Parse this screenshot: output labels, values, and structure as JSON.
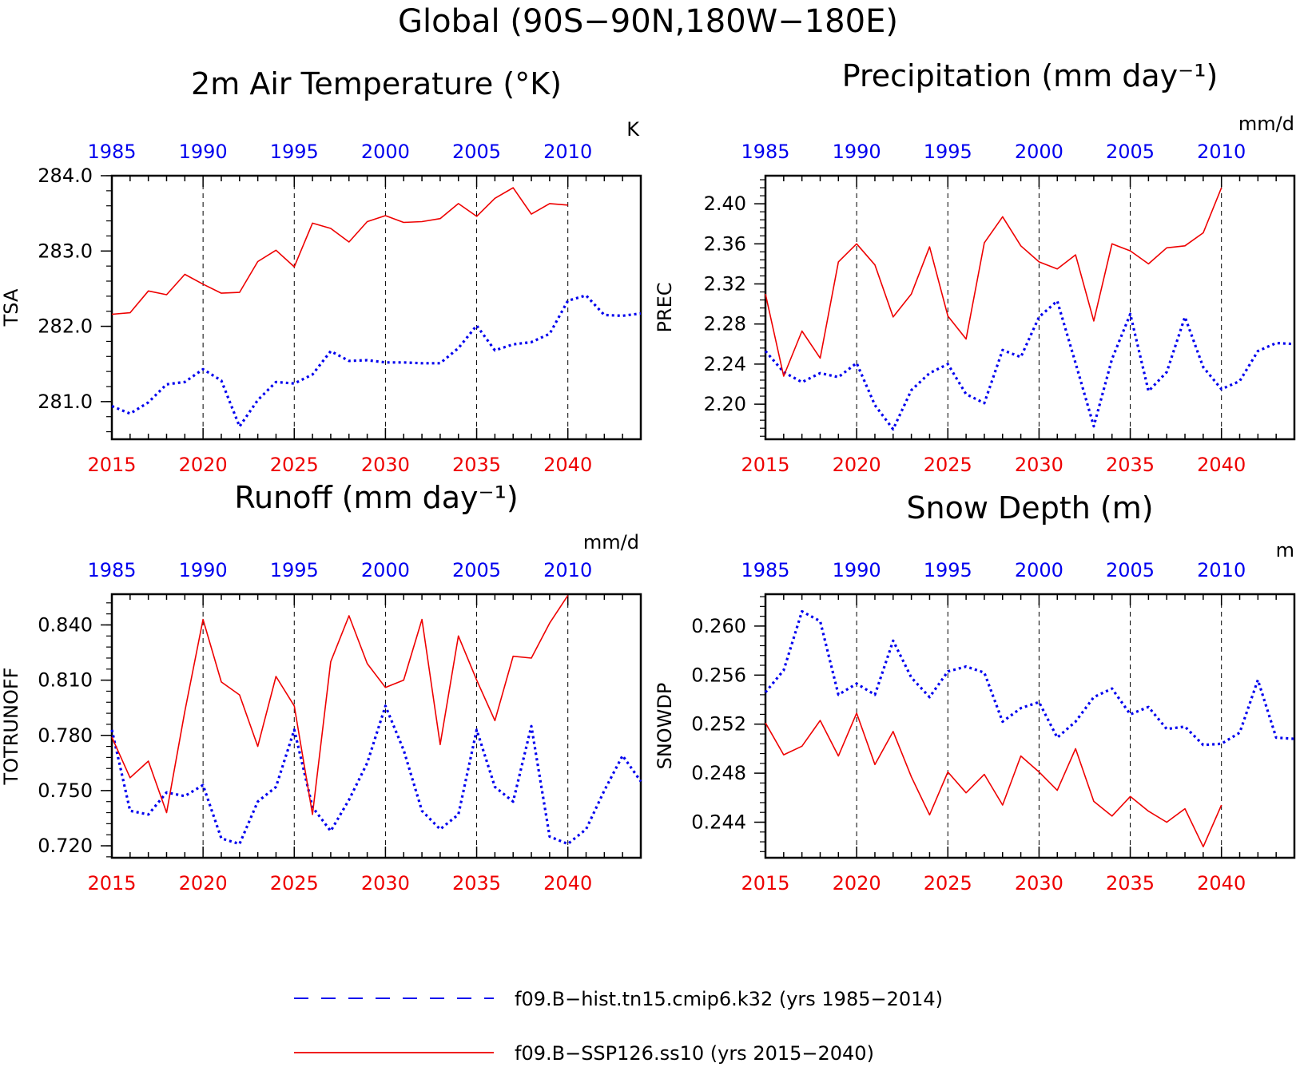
{
  "title": "Global (90S−90N,180W−180E)",
  "colors": {
    "hist": "#0000ee",
    "ssp": "#ee0000",
    "axis": "#000000"
  },
  "top_axis_labels": [
    "1985",
    "1990",
    "1995",
    "2000",
    "2005",
    "2010"
  ],
  "bottom_axis_labels": [
    "2015",
    "2020",
    "2025",
    "2030",
    "2035",
    "2040"
  ],
  "legend": [
    {
      "label": "f09.B−hist.tn15.cmip6.k32 (yrs 1985−2014)",
      "series": "hist"
    },
    {
      "label": "f09.B−SSP126.ss10 (yrs 2015−2040)",
      "series": "ssp"
    }
  ],
  "chart_data": [
    {
      "type": "line",
      "title": "2m Air Temperature (°K)",
      "units": "K",
      "ylabel": "TSA",
      "xlim": [
        2015,
        2044
      ],
      "ylim": [
        280.5,
        284.0
      ],
      "yticks": [
        "281.0",
        "282.0",
        "283.0",
        "284.0"
      ],
      "x_top": [
        "1985",
        "1990",
        "1995",
        "2000",
        "2005",
        "2010"
      ],
      "x_bottom": [
        "2015",
        "2020",
        "2025",
        "2030",
        "2035",
        "2040"
      ],
      "series": [
        {
          "key": "hist",
          "x0": 2015,
          "values": [
            280.94,
            280.84,
            280.99,
            281.23,
            281.26,
            281.43,
            281.28,
            280.67,
            281.02,
            281.26,
            281.24,
            281.36,
            281.67,
            281.54,
            281.55,
            281.52,
            281.52,
            281.51,
            281.51,
            281.71,
            282.01,
            281.68,
            281.76,
            281.79,
            281.9,
            282.34,
            282.41,
            282.15,
            282.14,
            282.17
          ]
        },
        {
          "key": "ssp",
          "x0": 2015,
          "values": [
            282.16,
            282.18,
            282.47,
            282.42,
            282.69,
            282.56,
            282.44,
            282.45,
            282.86,
            283.01,
            282.79,
            283.37,
            283.3,
            283.12,
            283.39,
            283.47,
            283.38,
            283.39,
            283.43,
            283.63,
            283.46,
            283.7,
            283.84,
            283.49,
            283.63,
            283.61
          ]
        }
      ]
    },
    {
      "type": "line",
      "title": "Precipitation (mm day⁻¹)",
      "units": "mm/d",
      "ylabel": "PREC",
      "xlim": [
        2015,
        2044
      ],
      "ylim": [
        2.165,
        2.428
      ],
      "yticks": [
        "2.20",
        "2.24",
        "2.28",
        "2.32",
        "2.36",
        "2.40"
      ],
      "x_top": [
        "1985",
        "1990",
        "1995",
        "2000",
        "2005",
        "2010"
      ],
      "x_bottom": [
        "2015",
        "2020",
        "2025",
        "2030",
        "2035",
        "2040"
      ],
      "series": [
        {
          "key": "hist",
          "x0": 2015,
          "values": [
            2.253,
            2.232,
            2.222,
            2.231,
            2.227,
            2.241,
            2.199,
            2.175,
            2.214,
            2.231,
            2.24,
            2.21,
            2.201,
            2.254,
            2.247,
            2.287,
            2.303,
            2.241,
            2.178,
            2.245,
            2.29,
            2.213,
            2.232,
            2.287,
            2.237,
            2.215,
            2.223,
            2.253,
            2.261,
            2.26
          ]
        },
        {
          "key": "ssp",
          "x0": 2015,
          "values": [
            2.31,
            2.228,
            2.273,
            2.246,
            2.342,
            2.36,
            2.339,
            2.287,
            2.31,
            2.357,
            2.288,
            2.265,
            2.361,
            2.387,
            2.358,
            2.342,
            2.335,
            2.349,
            2.283,
            2.36,
            2.353,
            2.34,
            2.356,
            2.358,
            2.371,
            2.416
          ]
        }
      ]
    },
    {
      "type": "line",
      "title": "Runoff (mm day⁻¹)",
      "units": "mm/d",
      "ylabel": "TOTRUNOFF",
      "xlim": [
        2015,
        2044
      ],
      "ylim": [
        0.7135,
        0.8567
      ],
      "yticks": [
        "0.720",
        "0.750",
        "0.780",
        "0.810",
        "0.840"
      ],
      "x_top": [
        "1985",
        "1990",
        "1995",
        "2000",
        "2005",
        "2010"
      ],
      "x_bottom": [
        "2015",
        "2020",
        "2025",
        "2030",
        "2035",
        "2040"
      ],
      "series": [
        {
          "key": "hist",
          "x0": 2015,
          "values": [
            0.783,
            0.739,
            0.737,
            0.749,
            0.747,
            0.753,
            0.724,
            0.721,
            0.744,
            0.752,
            0.783,
            0.741,
            0.728,
            0.745,
            0.765,
            0.796,
            0.772,
            0.739,
            0.729,
            0.737,
            0.783,
            0.752,
            0.744,
            0.785,
            0.725,
            0.721,
            0.729,
            0.75,
            0.769,
            0.755
          ]
        },
        {
          "key": "ssp",
          "x0": 2015,
          "values": [
            0.779,
            0.757,
            0.766,
            0.738,
            0.793,
            0.843,
            0.809,
            0.802,
            0.774,
            0.812,
            0.796,
            0.737,
            0.82,
            0.845,
            0.819,
            0.806,
            0.81,
            0.843,
            0.775,
            0.834,
            0.81,
            0.788,
            0.823,
            0.822,
            0.841,
            0.856
          ]
        }
      ]
    },
    {
      "type": "line",
      "title": "Snow Depth (m)",
      "units": "m",
      "ylabel": "SNOWDP",
      "xlim": [
        2015,
        2044
      ],
      "ylim": [
        0.2411,
        0.2626
      ],
      "yticks": [
        "0.244",
        "0.248",
        "0.252",
        "0.256",
        "0.260"
      ],
      "x_top": [
        "1985",
        "1990",
        "1995",
        "2000",
        "2005",
        "2010"
      ],
      "x_bottom": [
        "2015",
        "2020",
        "2025",
        "2030",
        "2035",
        "2040"
      ],
      "series": [
        {
          "key": "hist",
          "x0": 2015,
          "values": [
            0.2546,
            0.2564,
            0.2612,
            0.2604,
            0.2544,
            0.2553,
            0.2544,
            0.2588,
            0.2558,
            0.2542,
            0.2563,
            0.2567,
            0.2562,
            0.2522,
            0.2533,
            0.2538,
            0.2509,
            0.2522,
            0.2542,
            0.2549,
            0.2528,
            0.2534,
            0.2516,
            0.2518,
            0.2503,
            0.2504,
            0.2513,
            0.2556,
            0.2509,
            0.2508
          ]
        },
        {
          "key": "ssp",
          "x0": 2015,
          "values": [
            0.2521,
            0.2495,
            0.2502,
            0.2523,
            0.2494,
            0.2529,
            0.2487,
            0.2514,
            0.2477,
            0.2446,
            0.2481,
            0.2464,
            0.2479,
            0.2454,
            0.2494,
            0.2481,
            0.2466,
            0.25,
            0.2457,
            0.2445,
            0.2461,
            0.2449,
            0.244,
            0.2451,
            0.242,
            0.2454
          ]
        }
      ]
    }
  ]
}
